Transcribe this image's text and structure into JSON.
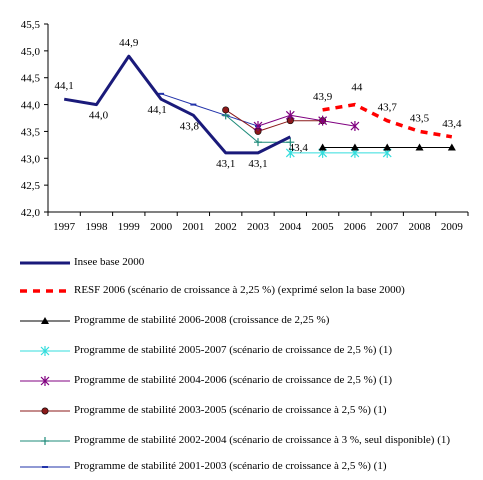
{
  "chart_data": {
    "type": "line",
    "title": "",
    "xlabel": "",
    "ylabel": "",
    "ylim": [
      42.0,
      45.5
    ],
    "yticks": [
      "42,0",
      "42,5",
      "43,0",
      "43,5",
      "44,0",
      "44,5",
      "45,0",
      "45,5"
    ],
    "ytick_values": [
      42.0,
      42.5,
      43.0,
      43.5,
      44.0,
      44.5,
      45.0,
      45.5
    ],
    "categories": [
      "1997",
      "1998",
      "1999",
      "2000",
      "2001",
      "2002",
      "2003",
      "2004",
      "2005",
      "2006",
      "2007",
      "2008",
      "2009"
    ],
    "legend_position": "bottom",
    "grid": false,
    "series": [
      {
        "name": "Insee base 2000",
        "color": "#1a1a7a",
        "style": "thick",
        "x": [
          "1997",
          "1998",
          "1999",
          "2000",
          "2001",
          "2002",
          "2003",
          "2004"
        ],
        "values": [
          44.1,
          44.0,
          44.9,
          44.1,
          43.8,
          43.1,
          43.1,
          43.4
        ],
        "labels": [
          "44,1",
          "44,0",
          "44,9",
          "44,1",
          "43,8",
          "43,1",
          "43,1",
          "43,4"
        ]
      },
      {
        "name": "RESF 2006 (scénario de croissance à 2,25 %) (exprimé selon la base 2000)",
        "color": "#ff0000",
        "style": "dashed",
        "x": [
          "2005",
          "2006",
          "2007",
          "2008",
          "2009"
        ],
        "values": [
          43.9,
          44.0,
          43.7,
          43.5,
          43.4
        ],
        "labels": [
          "43,9",
          "44",
          "43,7",
          "43,5",
          "43,4"
        ]
      },
      {
        "name": "Programme de stabilité 2006-2008 (croissance de 2,25 %)",
        "color": "#000000",
        "marker": "triangle",
        "x": [
          "2005",
          "2006",
          "2007",
          "2008",
          "2009"
        ],
        "values": [
          43.2,
          43.2,
          43.2,
          43.2,
          43.2
        ]
      },
      {
        "name": "Programme de stabilité 2005-2007 (scénario de croissance de 2,5 %) (1)",
        "color": "#33dddd",
        "marker": "asterisk",
        "x": [
          "2004",
          "2005",
          "2006",
          "2007"
        ],
        "values": [
          43.1,
          43.1,
          43.1,
          43.1
        ]
      },
      {
        "name": "Programme de stabilité 2004-2006 (scénario de croissance de 2,5 %) (1)",
        "color": "#800080",
        "marker": "asterisk",
        "x": [
          "2003",
          "2004",
          "2005",
          "2006"
        ],
        "values": [
          43.6,
          43.8,
          43.7,
          43.6
        ]
      },
      {
        "name": "Programme de stabilité 2003-2005 (scénario de croissance à 2,5 %) (1)",
        "color": "#8b1a1a",
        "marker": "circle",
        "x": [
          "2002",
          "2003",
          "2004",
          "2005"
        ],
        "values": [
          43.9,
          43.5,
          43.7,
          43.7
        ]
      },
      {
        "name": "Programme de stabilité 2002-2004 (scénario de croissance à 3 %, seul disponible) (1)",
        "color": "#1e8b7a",
        "marker": "plus",
        "x": [
          "2002",
          "2003",
          "2004"
        ],
        "values": [
          43.8,
          43.3,
          43.3
        ]
      },
      {
        "name": "Programme de stabilité 2001-2003 (scénario de croissance à 2,5 %) (1)",
        "color": "#2233aa",
        "marker": "dash",
        "x": [
          "2000",
          "2001",
          "2002",
          "2003"
        ],
        "values": [
          44.2,
          44.0,
          43.8,
          43.6
        ]
      }
    ]
  }
}
